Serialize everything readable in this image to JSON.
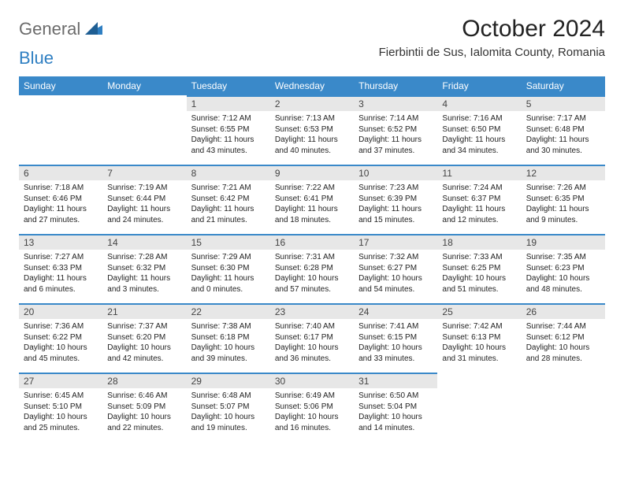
{
  "brand": {
    "part1": "General",
    "part2": "Blue"
  },
  "title": "October 2024",
  "location": "Fierbintii de Sus, Ialomita County, Romania",
  "colors": {
    "header_bg": "#3a89c9",
    "header_text": "#ffffff",
    "daynum_bg": "#e7e7e7",
    "border_top": "#3a89c9",
    "logo_gray": "#6b6b6b",
    "logo_blue": "#2f7fc2"
  },
  "day_headers": [
    "Sunday",
    "Monday",
    "Tuesday",
    "Wednesday",
    "Thursday",
    "Friday",
    "Saturday"
  ],
  "weeks": [
    [
      {
        "n": "",
        "sunrise": "",
        "sunset": "",
        "daylight": ""
      },
      {
        "n": "",
        "sunrise": "",
        "sunset": "",
        "daylight": ""
      },
      {
        "n": "1",
        "sunrise": "Sunrise: 7:12 AM",
        "sunset": "Sunset: 6:55 PM",
        "daylight": "Daylight: 11 hours and 43 minutes."
      },
      {
        "n": "2",
        "sunrise": "Sunrise: 7:13 AM",
        "sunset": "Sunset: 6:53 PM",
        "daylight": "Daylight: 11 hours and 40 minutes."
      },
      {
        "n": "3",
        "sunrise": "Sunrise: 7:14 AM",
        "sunset": "Sunset: 6:52 PM",
        "daylight": "Daylight: 11 hours and 37 minutes."
      },
      {
        "n": "4",
        "sunrise": "Sunrise: 7:16 AM",
        "sunset": "Sunset: 6:50 PM",
        "daylight": "Daylight: 11 hours and 34 minutes."
      },
      {
        "n": "5",
        "sunrise": "Sunrise: 7:17 AM",
        "sunset": "Sunset: 6:48 PM",
        "daylight": "Daylight: 11 hours and 30 minutes."
      }
    ],
    [
      {
        "n": "6",
        "sunrise": "Sunrise: 7:18 AM",
        "sunset": "Sunset: 6:46 PM",
        "daylight": "Daylight: 11 hours and 27 minutes."
      },
      {
        "n": "7",
        "sunrise": "Sunrise: 7:19 AM",
        "sunset": "Sunset: 6:44 PM",
        "daylight": "Daylight: 11 hours and 24 minutes."
      },
      {
        "n": "8",
        "sunrise": "Sunrise: 7:21 AM",
        "sunset": "Sunset: 6:42 PM",
        "daylight": "Daylight: 11 hours and 21 minutes."
      },
      {
        "n": "9",
        "sunrise": "Sunrise: 7:22 AM",
        "sunset": "Sunset: 6:41 PM",
        "daylight": "Daylight: 11 hours and 18 minutes."
      },
      {
        "n": "10",
        "sunrise": "Sunrise: 7:23 AM",
        "sunset": "Sunset: 6:39 PM",
        "daylight": "Daylight: 11 hours and 15 minutes."
      },
      {
        "n": "11",
        "sunrise": "Sunrise: 7:24 AM",
        "sunset": "Sunset: 6:37 PM",
        "daylight": "Daylight: 11 hours and 12 minutes."
      },
      {
        "n": "12",
        "sunrise": "Sunrise: 7:26 AM",
        "sunset": "Sunset: 6:35 PM",
        "daylight": "Daylight: 11 hours and 9 minutes."
      }
    ],
    [
      {
        "n": "13",
        "sunrise": "Sunrise: 7:27 AM",
        "sunset": "Sunset: 6:33 PM",
        "daylight": "Daylight: 11 hours and 6 minutes."
      },
      {
        "n": "14",
        "sunrise": "Sunrise: 7:28 AM",
        "sunset": "Sunset: 6:32 PM",
        "daylight": "Daylight: 11 hours and 3 minutes."
      },
      {
        "n": "15",
        "sunrise": "Sunrise: 7:29 AM",
        "sunset": "Sunset: 6:30 PM",
        "daylight": "Daylight: 11 hours and 0 minutes."
      },
      {
        "n": "16",
        "sunrise": "Sunrise: 7:31 AM",
        "sunset": "Sunset: 6:28 PM",
        "daylight": "Daylight: 10 hours and 57 minutes."
      },
      {
        "n": "17",
        "sunrise": "Sunrise: 7:32 AM",
        "sunset": "Sunset: 6:27 PM",
        "daylight": "Daylight: 10 hours and 54 minutes."
      },
      {
        "n": "18",
        "sunrise": "Sunrise: 7:33 AM",
        "sunset": "Sunset: 6:25 PM",
        "daylight": "Daylight: 10 hours and 51 minutes."
      },
      {
        "n": "19",
        "sunrise": "Sunrise: 7:35 AM",
        "sunset": "Sunset: 6:23 PM",
        "daylight": "Daylight: 10 hours and 48 minutes."
      }
    ],
    [
      {
        "n": "20",
        "sunrise": "Sunrise: 7:36 AM",
        "sunset": "Sunset: 6:22 PM",
        "daylight": "Daylight: 10 hours and 45 minutes."
      },
      {
        "n": "21",
        "sunrise": "Sunrise: 7:37 AM",
        "sunset": "Sunset: 6:20 PM",
        "daylight": "Daylight: 10 hours and 42 minutes."
      },
      {
        "n": "22",
        "sunrise": "Sunrise: 7:38 AM",
        "sunset": "Sunset: 6:18 PM",
        "daylight": "Daylight: 10 hours and 39 minutes."
      },
      {
        "n": "23",
        "sunrise": "Sunrise: 7:40 AM",
        "sunset": "Sunset: 6:17 PM",
        "daylight": "Daylight: 10 hours and 36 minutes."
      },
      {
        "n": "24",
        "sunrise": "Sunrise: 7:41 AM",
        "sunset": "Sunset: 6:15 PM",
        "daylight": "Daylight: 10 hours and 33 minutes."
      },
      {
        "n": "25",
        "sunrise": "Sunrise: 7:42 AM",
        "sunset": "Sunset: 6:13 PM",
        "daylight": "Daylight: 10 hours and 31 minutes."
      },
      {
        "n": "26",
        "sunrise": "Sunrise: 7:44 AM",
        "sunset": "Sunset: 6:12 PM",
        "daylight": "Daylight: 10 hours and 28 minutes."
      }
    ],
    [
      {
        "n": "27",
        "sunrise": "Sunrise: 6:45 AM",
        "sunset": "Sunset: 5:10 PM",
        "daylight": "Daylight: 10 hours and 25 minutes."
      },
      {
        "n": "28",
        "sunrise": "Sunrise: 6:46 AM",
        "sunset": "Sunset: 5:09 PM",
        "daylight": "Daylight: 10 hours and 22 minutes."
      },
      {
        "n": "29",
        "sunrise": "Sunrise: 6:48 AM",
        "sunset": "Sunset: 5:07 PM",
        "daylight": "Daylight: 10 hours and 19 minutes."
      },
      {
        "n": "30",
        "sunrise": "Sunrise: 6:49 AM",
        "sunset": "Sunset: 5:06 PM",
        "daylight": "Daylight: 10 hours and 16 minutes."
      },
      {
        "n": "31",
        "sunrise": "Sunrise: 6:50 AM",
        "sunset": "Sunset: 5:04 PM",
        "daylight": "Daylight: 10 hours and 14 minutes."
      },
      {
        "n": "",
        "sunrise": "",
        "sunset": "",
        "daylight": ""
      },
      {
        "n": "",
        "sunrise": "",
        "sunset": "",
        "daylight": ""
      }
    ]
  ]
}
